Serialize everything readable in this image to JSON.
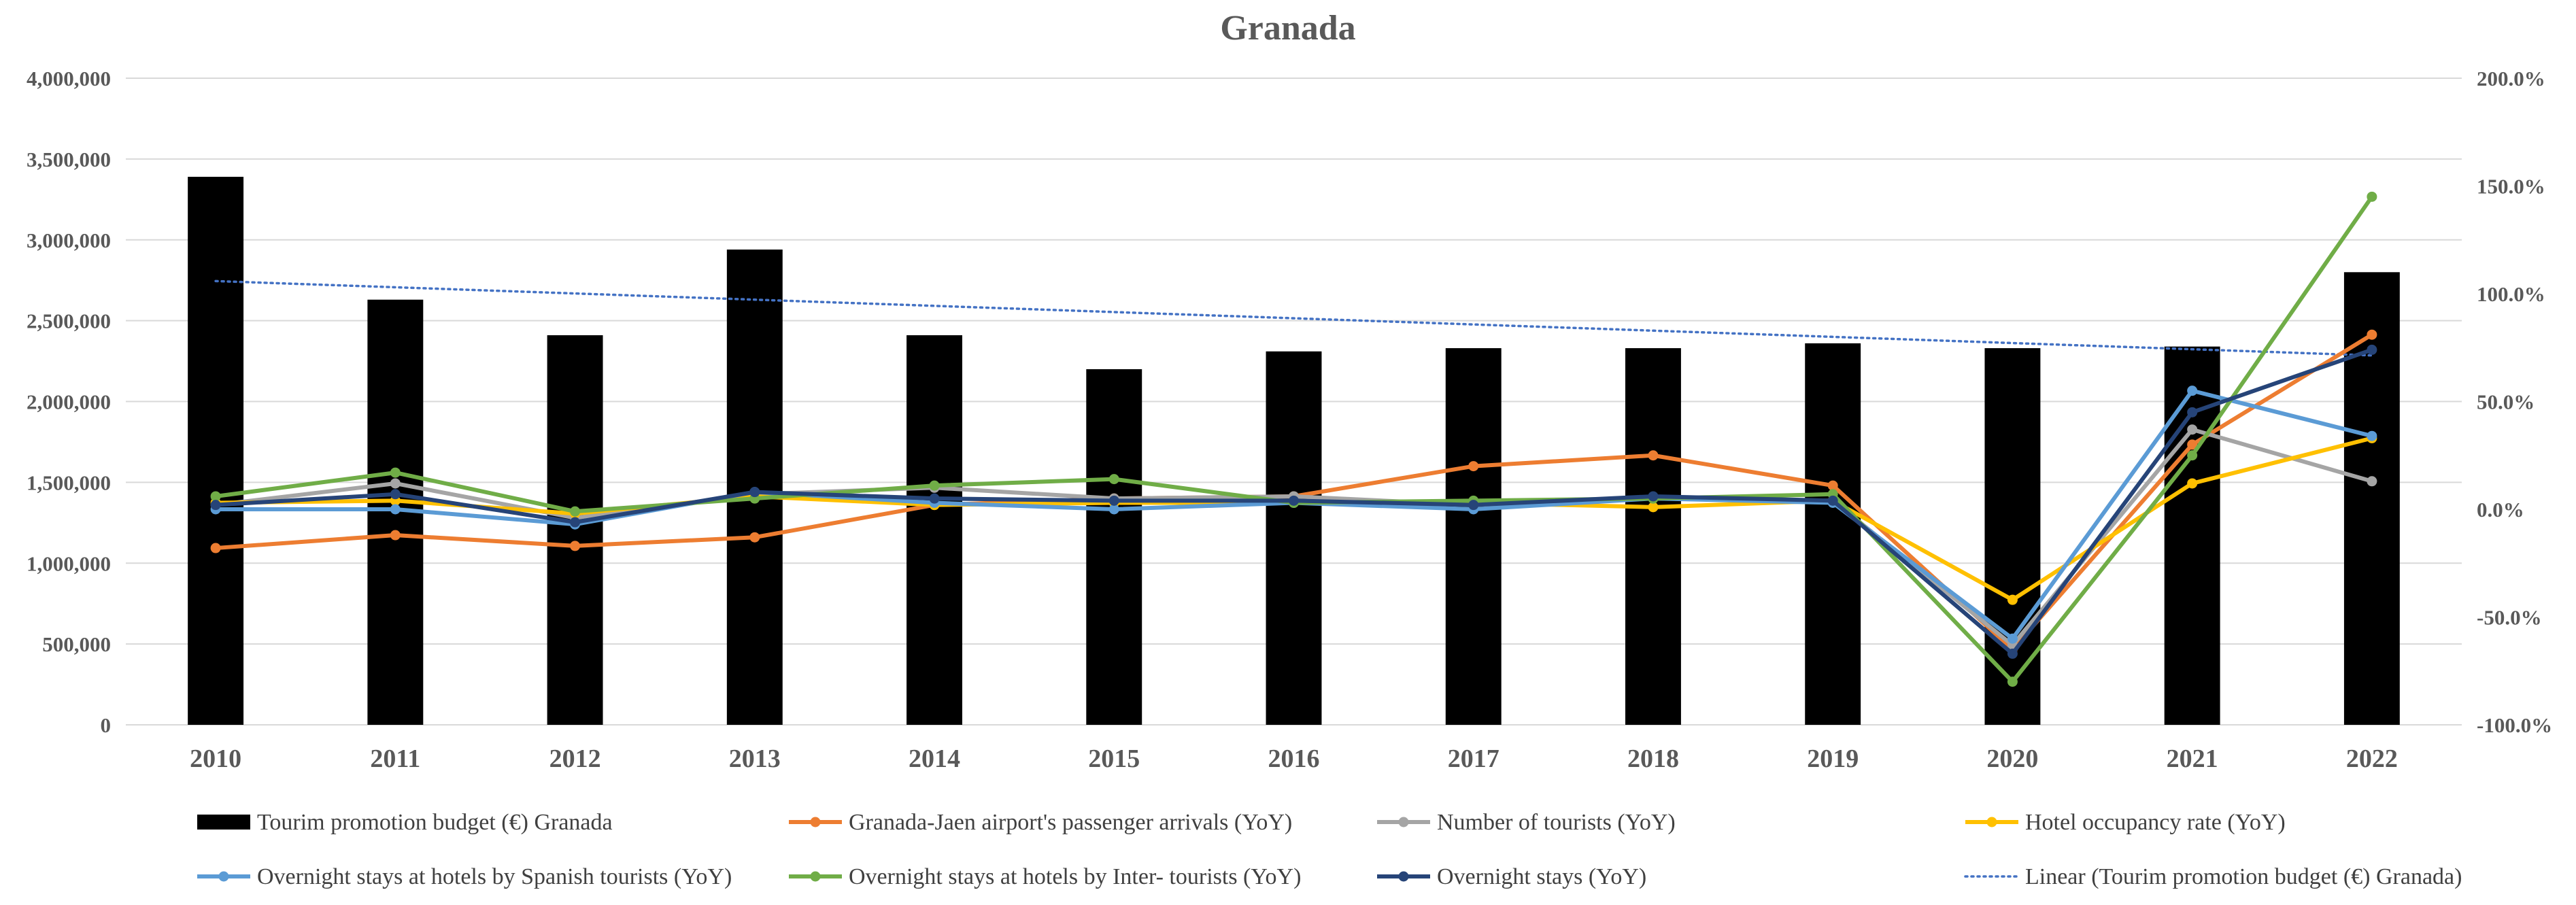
{
  "chart_data": {
    "type": "bar",
    "title": "Granada",
    "categories": [
      "2010",
      "2011",
      "2012",
      "2013",
      "2014",
      "2015",
      "2016",
      "2017",
      "2018",
      "2019",
      "2020",
      "2021",
      "2022"
    ],
    "y_left": {
      "range": [
        0,
        4000000
      ],
      "ticks": [
        0,
        500000,
        1000000,
        1500000,
        2000000,
        2500000,
        3000000,
        3500000,
        4000000
      ],
      "tick_labels": [
        "0",
        "500,000",
        "1,000,000",
        "1,500,000",
        "2,000,000",
        "2,500,000",
        "3,000,000",
        "3,500,000",
        "4,000,000"
      ]
    },
    "y_right": {
      "range": [
        -100,
        200
      ],
      "ticks": [
        -100,
        -50,
        0,
        50,
        100,
        150,
        200
      ],
      "tick_labels": [
        "-100.0%",
        "-50.0%",
        "0.0%",
        "50.0%",
        "100.0%",
        "150.0%",
        "200.0%"
      ]
    },
    "bars": {
      "name": "Tourim promotion budget (€) Granada",
      "color": "#000000",
      "values": [
        3390000,
        2630000,
        2410000,
        2940000,
        2410000,
        2200000,
        2310000,
        2330000,
        2330000,
        2360000,
        2330000,
        2340000,
        2800000
      ]
    },
    "trendline": {
      "name": "Linear (Tourim promotion budget (€) Granada)",
      "color": "#4472C4",
      "start": 2745000,
      "end": 2285000
    },
    "series": [
      {
        "name": "Granada-Jaen airport's passenger arrivals (YoY)",
        "color": "#ED7D31",
        "values": [
          -18,
          -12,
          -17,
          -13,
          2,
          5,
          6,
          20,
          25,
          11,
          -65,
          30,
          81
        ]
      },
      {
        "name": "Number of tourists (YoY)",
        "color": "#A5A5A5",
        "values": [
          2,
          12,
          -4,
          7,
          10,
          5,
          6,
          2,
          5,
          4,
          -63,
          37,
          13
        ]
      },
      {
        "name": "Hotel occupancy rate (YoY)",
        "color": "#FFC000",
        "values": [
          3,
          4,
          -2,
          6,
          2,
          3,
          3,
          3,
          1,
          4,
          -42,
          12,
          33
        ]
      },
      {
        "name": "Overnight stays at hotels by Spanish tourists (YoY)",
        "color": "#5B9BD5",
        "values": [
          0,
          0,
          -7,
          8,
          3,
          0,
          3,
          0,
          5,
          3,
          -60,
          55,
          34
        ]
      },
      {
        "name": "Overnight stays at hotels by Inter- tourists (YoY)",
        "color": "#70AD47",
        "values": [
          6,
          17,
          -1,
          5,
          11,
          14,
          3,
          4,
          5,
          7,
          -80,
          25,
          145
        ]
      },
      {
        "name": "Overnight stays (YoY)",
        "color": "#264478",
        "values": [
          2,
          7,
          -6,
          8,
          5,
          4,
          4,
          2,
          6,
          4,
          -67,
          45,
          74
        ]
      }
    ],
    "grid": true,
    "legend_position": "bottom"
  }
}
